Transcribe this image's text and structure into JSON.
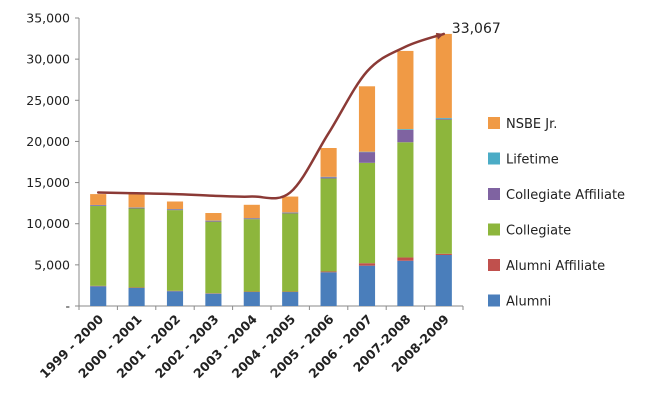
{
  "chart_data": {
    "type": "bar",
    "stacked": true,
    "categories": [
      "1999 - 2000",
      "2000 - 2001",
      "2001 - 2002",
      "2002 - 2003",
      "2003 - 2004",
      "2004 - 2005",
      "2005 - 2006",
      "2006 - 2007",
      "2007-2008",
      "2008-2009"
    ],
    "series": [
      {
        "name": "Alumni",
        "color": "#4a7ebb",
        "values": [
          2400,
          2200,
          1800,
          1500,
          1700,
          1700,
          4100,
          4900,
          5500,
          6200
        ]
      },
      {
        "name": "Alumni Affiliate",
        "color": "#c0504d",
        "values": [
          50,
          50,
          50,
          50,
          50,
          50,
          100,
          300,
          400,
          150
        ]
      },
      {
        "name": "Collegiate",
        "color": "#8db63c",
        "values": [
          9700,
          9600,
          9800,
          8700,
          8800,
          9500,
          11300,
          12200,
          14000,
          16300
        ]
      },
      {
        "name": "Collegiate Affiliate",
        "color": "#7f63a1",
        "values": [
          100,
          100,
          100,
          100,
          100,
          100,
          150,
          1300,
          1500,
          100
        ]
      },
      {
        "name": "Lifetime",
        "color": "#4bacc6",
        "values": [
          30,
          30,
          30,
          30,
          30,
          30,
          50,
          50,
          100,
          100
        ]
      },
      {
        "name": "NSBE Jr.",
        "color": "#f09a45",
        "values": [
          1320,
          1720,
          920,
          920,
          1620,
          1920,
          3500,
          7950,
          9500,
          10217
        ]
      }
    ],
    "trend_line": {
      "color": "#8b3a36",
      "values": [
        13800,
        13700,
        13600,
        13400,
        13300,
        13800,
        21000,
        28500,
        31500,
        33067
      ]
    },
    "annotation": "33,067",
    "ylim": [
      0,
      35000
    ],
    "yticks": [
      0,
      5000,
      10000,
      15000,
      20000,
      25000,
      30000,
      35000
    ],
    "ytick_labels": [
      "-",
      "5,000",
      "10,000",
      "15,000",
      "20,000",
      "25,000",
      "30,000",
      "35,000"
    ],
    "legend_order": [
      "NSBE Jr.",
      "Lifetime",
      "Collegiate Affiliate",
      "Collegiate",
      "Alumni Affiliate",
      "Alumni"
    ],
    "legend_position": "right",
    "grid": false,
    "title": "",
    "xlabel": "",
    "ylabel": ""
  }
}
